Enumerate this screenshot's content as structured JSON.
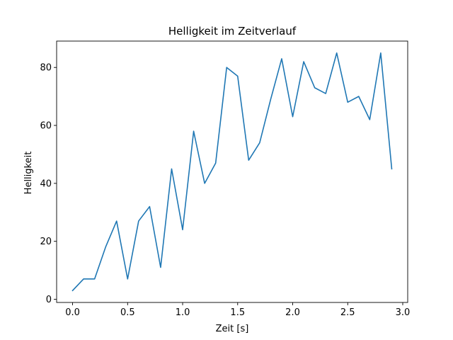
{
  "chart_data": {
    "type": "line",
    "title": "Helligkeit im Zeitverlauf",
    "xlabel": "Zeit [s]",
    "ylabel": "Helligkeit",
    "xlim": [
      -0.145,
      3.045
    ],
    "ylim": [
      -1.1,
      89.1
    ],
    "xticks": [
      0.0,
      0.5,
      1.0,
      1.5,
      2.0,
      2.5,
      3.0
    ],
    "xtick_labels": [
      "0.0",
      "0.5",
      "1.0",
      "1.5",
      "2.0",
      "2.5",
      "3.0"
    ],
    "yticks": [
      0,
      20,
      40,
      60,
      80
    ],
    "ytick_labels": [
      "0",
      "20",
      "40",
      "60",
      "80"
    ],
    "grid": false,
    "series": [
      {
        "color": "#1f77b4",
        "x": [
          0.0,
          0.1,
          0.2,
          0.3,
          0.4,
          0.5,
          0.6,
          0.7,
          0.8,
          0.9,
          1.0,
          1.1,
          1.2,
          1.3,
          1.4,
          1.5,
          1.6,
          1.7,
          1.8,
          1.9,
          2.0,
          2.1,
          2.2,
          2.3,
          2.4,
          2.5,
          2.6,
          2.7,
          2.8,
          2.9
        ],
        "y": [
          3,
          7,
          7,
          18,
          27,
          7,
          27,
          32,
          11,
          45,
          24,
          58,
          40,
          47,
          80,
          77,
          48,
          54,
          69,
          83,
          63,
          82,
          73,
          71,
          85,
          68,
          70,
          62,
          85,
          45
        ]
      }
    ]
  }
}
